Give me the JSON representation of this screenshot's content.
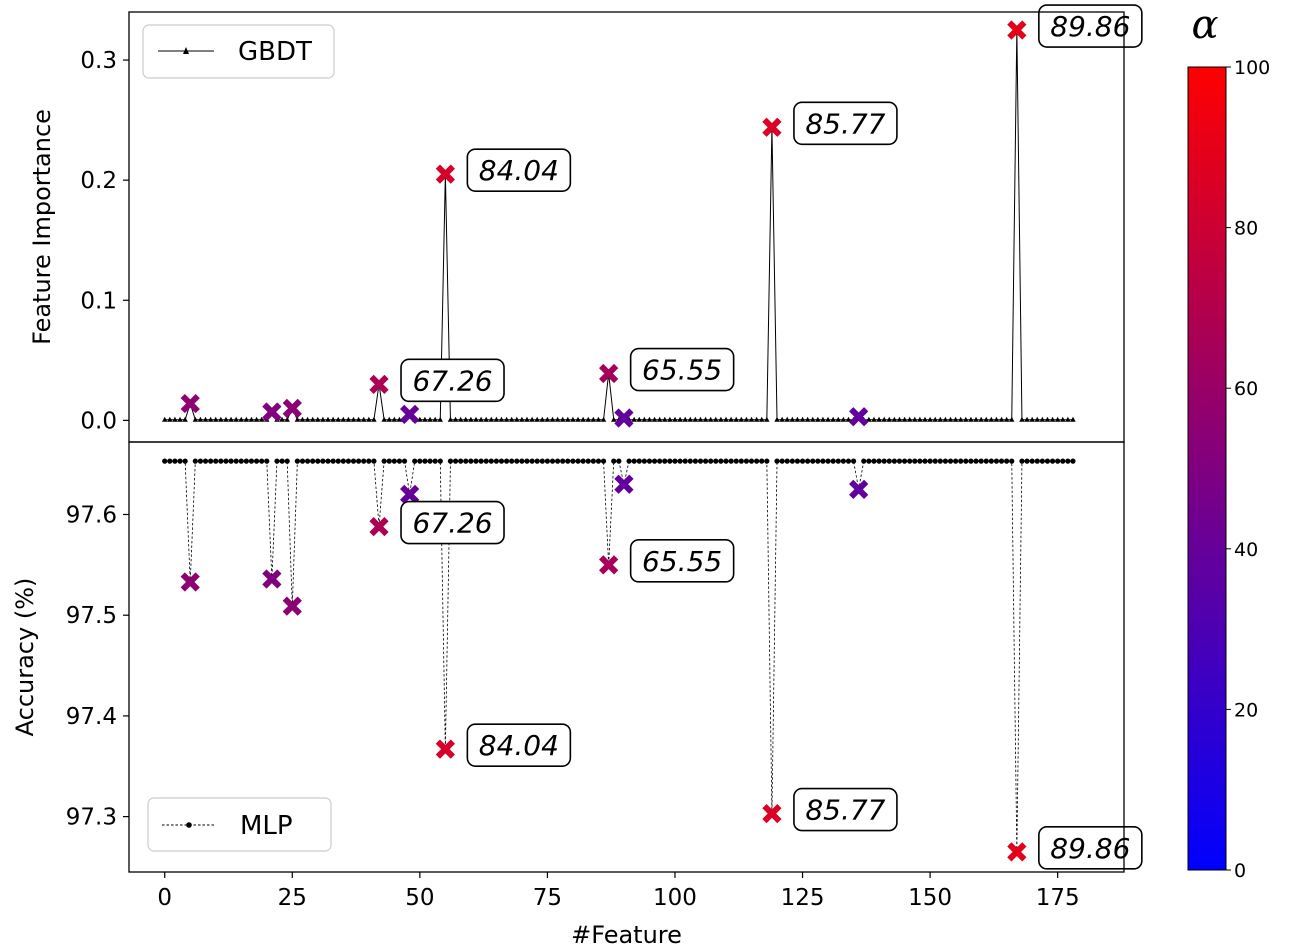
{
  "chart_data": [
    {
      "type": "line",
      "panel": "top",
      "series": [
        {
          "name": "GBDT",
          "marker": "triangle",
          "linestyle": "solid"
        }
      ],
      "ylabel": "Feature Importance",
      "xlabel": "",
      "ylim": [
        -0.018,
        0.34
      ],
      "yticks": [
        "0.0",
        "0.1",
        "0.2",
        "0.3"
      ],
      "ytick_values": [
        0.0,
        0.1,
        0.2,
        0.3
      ],
      "n_features": 179,
      "baseline": 0.0005,
      "highlighted": [
        {
          "x": 5,
          "y": 0.014,
          "alpha": 56
        },
        {
          "x": 21,
          "y": 0.007,
          "alpha": 50
        },
        {
          "x": 25,
          "y": 0.01,
          "alpha": 55
        },
        {
          "x": 42,
          "y": 0.03,
          "alpha": 67.26,
          "label": "67.26"
        },
        {
          "x": 48,
          "y": 0.005,
          "alpha": 40
        },
        {
          "x": 55,
          "y": 0.205,
          "alpha": 84.04,
          "label": "84.04"
        },
        {
          "x": 87,
          "y": 0.039,
          "alpha": 65.55,
          "label": "65.55"
        },
        {
          "x": 90,
          "y": 0.002,
          "alpha": 38
        },
        {
          "x": 119,
          "y": 0.244,
          "alpha": 85.77,
          "label": "85.77"
        },
        {
          "x": 136,
          "y": 0.003,
          "alpha": 38
        },
        {
          "x": 167,
          "y": 0.325,
          "alpha": 89.86,
          "label": "89.86"
        }
      ],
      "legend": "top-left"
    },
    {
      "type": "line",
      "panel": "bottom",
      "series": [
        {
          "name": "MLP",
          "marker": "circle",
          "linestyle": "dashed"
        }
      ],
      "ylabel": "Accuracy (%)",
      "xlabel": "#Feature",
      "xlim": [
        -7,
        188
      ],
      "ylim": [
        97.245,
        97.672
      ],
      "xticks": [
        "0",
        "25",
        "50",
        "75",
        "100",
        "125",
        "150",
        "175"
      ],
      "xtick_values": [
        0,
        25,
        50,
        75,
        100,
        125,
        150,
        175
      ],
      "yticks": [
        "97.3",
        "97.4",
        "97.5",
        "97.6"
      ],
      "ytick_values": [
        97.3,
        97.4,
        97.5,
        97.6
      ],
      "baseline": 97.653,
      "highlighted": [
        {
          "x": 5,
          "y": 97.533,
          "alpha": 56
        },
        {
          "x": 21,
          "y": 97.536,
          "alpha": 50
        },
        {
          "x": 25,
          "y": 97.509,
          "alpha": 55
        },
        {
          "x": 42,
          "y": 97.588,
          "alpha": 67.26,
          "label": "67.26"
        },
        {
          "x": 48,
          "y": 97.62,
          "alpha": 40
        },
        {
          "x": 55,
          "y": 97.367,
          "alpha": 84.04,
          "label": "84.04"
        },
        {
          "x": 87,
          "y": 97.55,
          "alpha": 65.55,
          "label": "65.55"
        },
        {
          "x": 90,
          "y": 97.63,
          "alpha": 38
        },
        {
          "x": 119,
          "y": 97.303,
          "alpha": 85.77,
          "label": "85.77"
        },
        {
          "x": 136,
          "y": 97.625,
          "alpha": 38
        },
        {
          "x": 167,
          "y": 97.265,
          "alpha": 89.86,
          "label": "89.86"
        }
      ],
      "legend": "bottom-left"
    }
  ],
  "colorbar": {
    "title": "α",
    "range": [
      0,
      100
    ],
    "ticks": [
      "0",
      "20",
      "40",
      "60",
      "80",
      "100"
    ],
    "tick_values": [
      0,
      20,
      40,
      60,
      80,
      100
    ],
    "color_low": "#0000ff",
    "color_high": "#ff0000"
  }
}
